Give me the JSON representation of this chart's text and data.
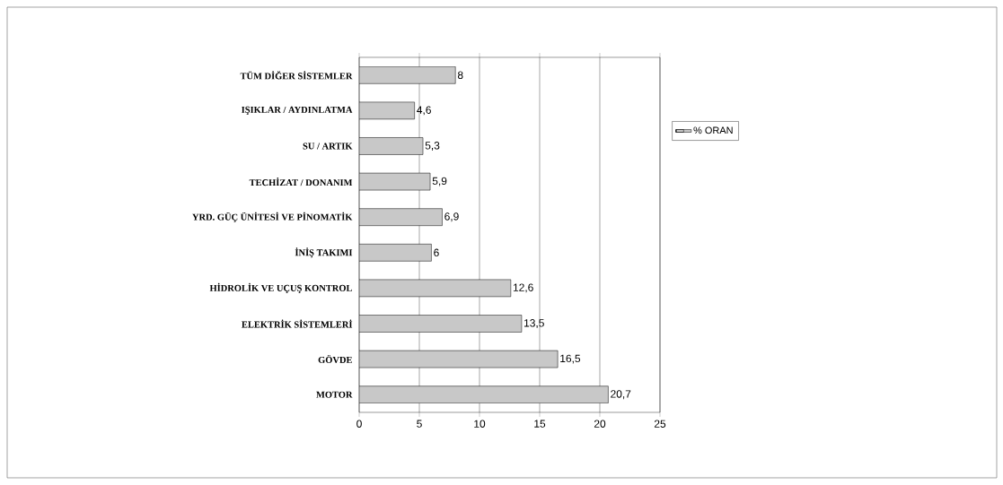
{
  "chart_data": {
    "type": "bar",
    "orientation": "horizontal",
    "categories": [
      "TÜM DİĞER SİSTEMLER",
      "IŞIKLAR / AYDINLATMA",
      "SU / ARTIK",
      "TECHİZAT / DONANIM",
      "YRD. GÜÇ ÜNİTESİ VE PİNOMATİK",
      "İNİŞ TAKIMI",
      "HİDROLİK VE UÇUŞ KONTROL",
      "ELEKTRİK SİSTEMLERİ",
      "GÖVDE",
      "MOTOR"
    ],
    "series": [
      {
        "name": "% ORAN",
        "color": "#c8c8c8",
        "values": [
          8,
          4.6,
          5.3,
          5.9,
          6.9,
          6,
          12.6,
          13.5,
          16.5,
          20.7
        ],
        "value_labels": [
          "8",
          "4,6",
          "5,3",
          "5,9",
          "6,9",
          "6",
          "12,6",
          "13,5",
          "16,5",
          "20,7"
        ]
      }
    ],
    "xlim": [
      0,
      25
    ],
    "xticks": [
      0,
      5,
      10,
      15,
      20,
      25
    ],
    "grid": "x",
    "legend": "right"
  }
}
